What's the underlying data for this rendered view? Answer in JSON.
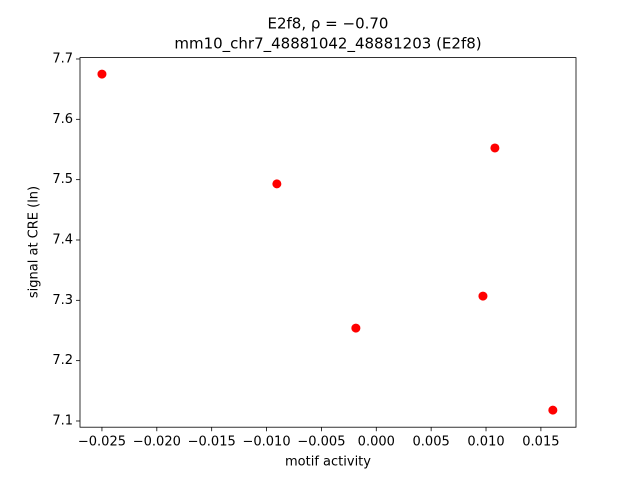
{
  "chart_data": {
    "type": "scatter",
    "title": "E2f8, ρ = −0.70",
    "subtitle": "mm10_chr7_48881042_48881203 (E2f8)",
    "x_label": "motif activity",
    "y_label": "signal at CRE (ln)",
    "color": "#ff0000",
    "x": [
      -0.025,
      -0.00906,
      -0.00186,
      0.00972,
      0.01081,
      0.01609
    ],
    "values": [
      7.675,
      7.493,
      7.254,
      7.307,
      7.5525,
      7.118
    ],
    "xlim": [
      -0.027,
      0.0182
    ],
    "ylim": [
      7.0897,
      7.7023
    ],
    "xticks": [
      {
        "value": -0.025,
        "label": "−0.025"
      },
      {
        "value": -0.02,
        "label": "−0.020"
      },
      {
        "value": -0.015,
        "label": "−0.015"
      },
      {
        "value": -0.01,
        "label": "−0.010"
      },
      {
        "value": -0.005,
        "label": "−0.005"
      },
      {
        "value": 0,
        "label": "0.000"
      },
      {
        "value": 0.005,
        "label": "0.005"
      },
      {
        "value": 0.01,
        "label": "0.010"
      },
      {
        "value": 0.015,
        "label": "0.015"
      }
    ],
    "yticks": [
      7.1,
      7.2,
      7.3,
      7.4,
      7.5,
      7.6,
      7.7
    ],
    "grid": false
  }
}
